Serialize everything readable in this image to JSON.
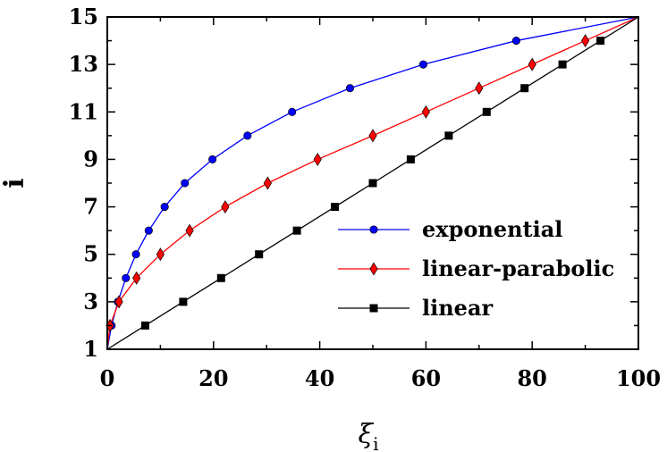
{
  "chart_data": {
    "type": "line",
    "xlabel": "ξ",
    "xlabel_sub": "i",
    "ylabel": "i",
    "xlim": [
      0,
      100
    ],
    "ylim": [
      1,
      15
    ],
    "xticks": [
      0,
      20,
      40,
      60,
      80,
      100
    ],
    "yticks": [
      1,
      3,
      5,
      7,
      9,
      11,
      13,
      15
    ],
    "grid": false,
    "legend_position": "lower-right",
    "series": [
      {
        "name": "exponential",
        "color": "#0000ff",
        "marker": "circle",
        "x": [
          0,
          0.8,
          2.0,
          3.5,
          5.4,
          7.8,
          10.8,
          14.6,
          19.8,
          26.4,
          34.8,
          45.7,
          59.5,
          77.0,
          100
        ],
        "y": [
          1,
          2,
          3,
          4,
          5,
          6,
          7,
          8,
          9,
          10,
          11,
          12,
          13,
          14,
          15
        ]
      },
      {
        "name": "linear-parabolic",
        "color": "#ff0000",
        "marker": "diamond",
        "x": [
          0,
          0.5,
          2.2,
          5.5,
          10.0,
          15.5,
          22.2,
          30.2,
          39.6,
          50.0,
          60.0,
          70.0,
          80.0,
          90.0,
          100
        ],
        "y": [
          1,
          2,
          3,
          4,
          5,
          6,
          7,
          8,
          9,
          10,
          11,
          12,
          13,
          14,
          15
        ]
      },
      {
        "name": "linear",
        "color": "#000000",
        "marker": "square",
        "x": [
          0,
          7.14,
          14.29,
          21.43,
          28.57,
          35.71,
          42.86,
          50.0,
          57.14,
          64.29,
          71.43,
          78.57,
          85.71,
          92.86,
          100
        ],
        "y": [
          1,
          2,
          3,
          4,
          5,
          6,
          7,
          8,
          9,
          10,
          11,
          12,
          13,
          14,
          15
        ]
      }
    ]
  }
}
